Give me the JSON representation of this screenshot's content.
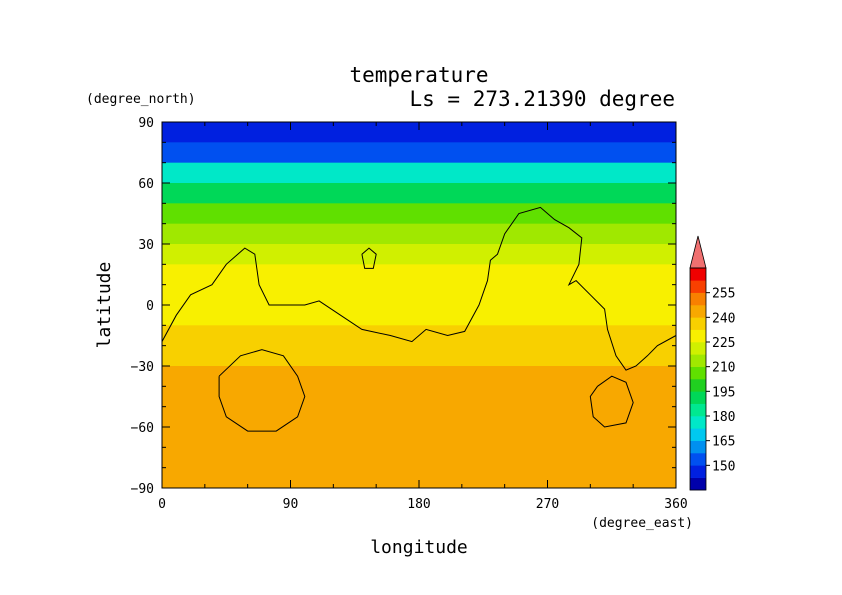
{
  "chart_data": {
    "type": "heatmap",
    "title": "temperature",
    "subtitle": "Ls = 273.21390 degree",
    "xlabel": "longitude",
    "ylabel": "latitude",
    "x_unit": "(degree_east)",
    "y_unit": "(degree_north)",
    "xlim": [
      0,
      360
    ],
    "ylim": [
      -90,
      90
    ],
    "x_ticks": [
      0,
      90,
      180,
      270,
      360
    ],
    "y_ticks": [
      90,
      60,
      30,
      0,
      -30,
      -60,
      -90
    ],
    "colorbar": {
      "levels": [
        135,
        142.5,
        150,
        157.5,
        165,
        172.5,
        180,
        187.5,
        195,
        202.5,
        210,
        217.5,
        225,
        232.5,
        240,
        247.5,
        255,
        262.5
      ],
      "tick_labels": [
        "150",
        "165",
        "180",
        "195",
        "210",
        "225",
        "240",
        "255"
      ],
      "colors": [
        "#0000aa",
        "#0020e0",
        "#0050f0",
        "#0090f0",
        "#00c8f0",
        "#00e8c8",
        "#00e890",
        "#00d858",
        "#20d020",
        "#60e000",
        "#a0e800",
        "#d0f000",
        "#f8f000",
        "#f8d000",
        "#f8a800",
        "#f88000",
        "#f84000",
        "#f00000",
        "#f07070"
      ]
    },
    "zonal_profile": [
      {
        "lat": 85,
        "temp": 142
      },
      {
        "lat": 75,
        "temp": 148
      },
      {
        "lat": 65,
        "temp": 170
      },
      {
        "lat": 55,
        "temp": 180
      },
      {
        "lat": 45,
        "temp": 195
      },
      {
        "lat": 35,
        "temp": 207
      },
      {
        "lat": 25,
        "temp": 212
      },
      {
        "lat": 15,
        "temp": 220
      },
      {
        "lat": 5,
        "temp": 222
      },
      {
        "lat": -5,
        "temp": 222
      },
      {
        "lat": -15,
        "temp": 226
      },
      {
        "lat": -25,
        "temp": 232
      },
      {
        "lat": -35,
        "temp": 236
      },
      {
        "lat": -45,
        "temp": 237
      },
      {
        "lat": -55,
        "temp": 236
      },
      {
        "lat": -65,
        "temp": 236
      },
      {
        "lat": -75,
        "temp": 237
      },
      {
        "lat": -85,
        "temp": 233
      }
    ],
    "contour_lines": [
      [
        [
          0,
          -18
        ],
        [
          10,
          -5
        ],
        [
          20,
          5
        ],
        [
          35,
          10
        ],
        [
          45,
          20
        ],
        [
          58,
          28
        ],
        [
          65,
          25
        ],
        [
          68,
          10
        ],
        [
          75,
          0
        ],
        [
          90,
          0
        ],
        [
          100,
          0
        ],
        [
          110,
          2
        ],
        [
          125,
          -5
        ],
        [
          140,
          -12
        ],
        [
          160,
          -15
        ],
        [
          175,
          -18
        ],
        [
          185,
          -12
        ],
        [
          200,
          -15
        ],
        [
          212,
          -13
        ],
        [
          222,
          0
        ],
        [
          228,
          12
        ],
        [
          230,
          22
        ],
        [
          235,
          25
        ],
        [
          240,
          35
        ],
        [
          250,
          45
        ],
        [
          265,
          48
        ],
        [
          275,
          42
        ],
        [
          285,
          38
        ],
        [
          294,
          33
        ],
        [
          292,
          20
        ],
        [
          285,
          10
        ],
        [
          290,
          12
        ],
        [
          300,
          5
        ],
        [
          310,
          -2
        ],
        [
          312,
          -12
        ],
        [
          318,
          -25
        ],
        [
          325,
          -32
        ],
        [
          332,
          -30
        ],
        [
          340,
          -25
        ],
        [
          347,
          -20
        ],
        [
          360,
          -15
        ]
      ],
      [
        [
          140,
          25
        ],
        [
          145,
          28
        ],
        [
          150,
          25
        ],
        [
          148,
          18
        ],
        [
          142,
          18
        ],
        [
          140,
          25
        ]
      ],
      [
        [
          40,
          -35
        ],
        [
          55,
          -25
        ],
        [
          70,
          -22
        ],
        [
          85,
          -25
        ],
        [
          95,
          -35
        ],
        [
          100,
          -45
        ],
        [
          95,
          -55
        ],
        [
          80,
          -62
        ],
        [
          60,
          -62
        ],
        [
          45,
          -55
        ],
        [
          40,
          -45
        ],
        [
          40,
          -35
        ]
      ],
      [
        [
          305,
          -40
        ],
        [
          315,
          -35
        ],
        [
          325,
          -38
        ],
        [
          330,
          -48
        ],
        [
          325,
          -58
        ],
        [
          310,
          -60
        ],
        [
          302,
          -55
        ],
        [
          300,
          -45
        ],
        [
          305,
          -40
        ]
      ]
    ]
  }
}
